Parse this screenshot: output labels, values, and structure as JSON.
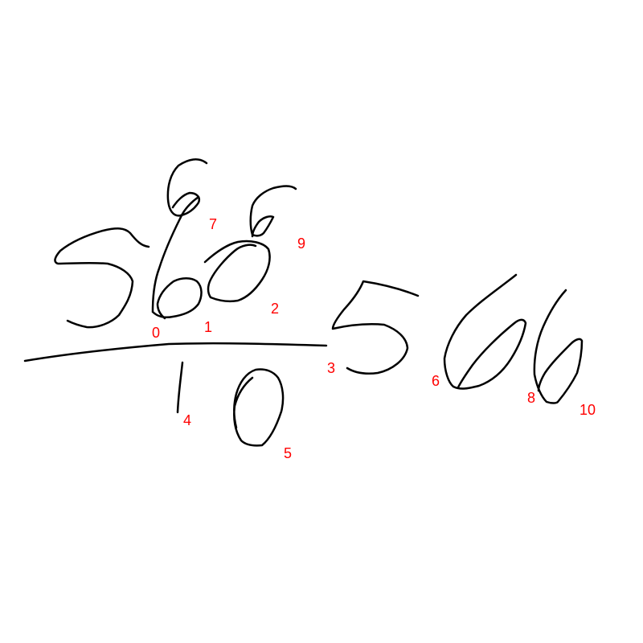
{
  "colors": {
    "background": "#ffffff",
    "ink": "#000000",
    "label": "#ff0000"
  },
  "strokes": [
    {
      "label": "0",
      "symbol": "5"
    },
    {
      "label": "1",
      "symbol": "6"
    },
    {
      "label": "2",
      "symbol": "0"
    },
    {
      "label": "3",
      "symbol": "fraction-bar"
    },
    {
      "label": "4",
      "symbol": "1"
    },
    {
      "label": "5",
      "symbol": "0"
    },
    {
      "label": "6",
      "symbol": "5"
    },
    {
      "label": "7",
      "symbol": "6"
    },
    {
      "label": "8",
      "symbol": "6"
    },
    {
      "label": "9",
      "symbol": "6"
    },
    {
      "label": "10",
      "symbol": "6"
    }
  ]
}
